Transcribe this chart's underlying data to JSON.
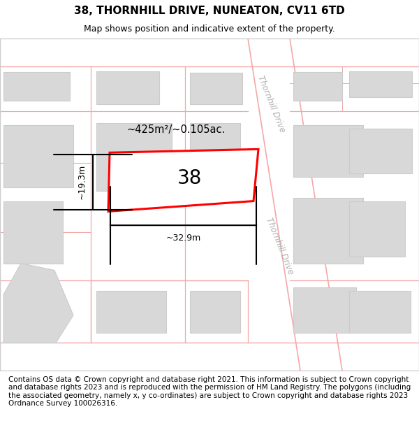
{
  "title_line1": "38, THORNHILL DRIVE, NUNEATON, CV11 6TD",
  "title_line2": "Map shows position and indicative extent of the property.",
  "footer_text": "Contains OS data © Crown copyright and database right 2021. This information is subject to Crown copyright and database rights 2023 and is reproduced with the permission of HM Land Registry. The polygons (including the associated geometry, namely x, y co-ordinates) are subject to Crown copyright and database rights 2023 Ordnance Survey 100026316.",
  "map_bg": "#f7f7f7",
  "road_color": "#f5a8a8",
  "building_color": "#d8d8d8",
  "building_edge": "#cccccc",
  "road_fill": "#ffffff",
  "property_color": "#ff0000",
  "road_label": "Thornhill Drive",
  "property_number": "38",
  "area_label": "~425m²/~0.105ac.",
  "width_label": "~32.9m",
  "height_label": "~19.3m",
  "title_fontsize": 11,
  "subtitle_fontsize": 9,
  "footer_fontsize": 7.5,
  "map_border_color": "#cccccc"
}
